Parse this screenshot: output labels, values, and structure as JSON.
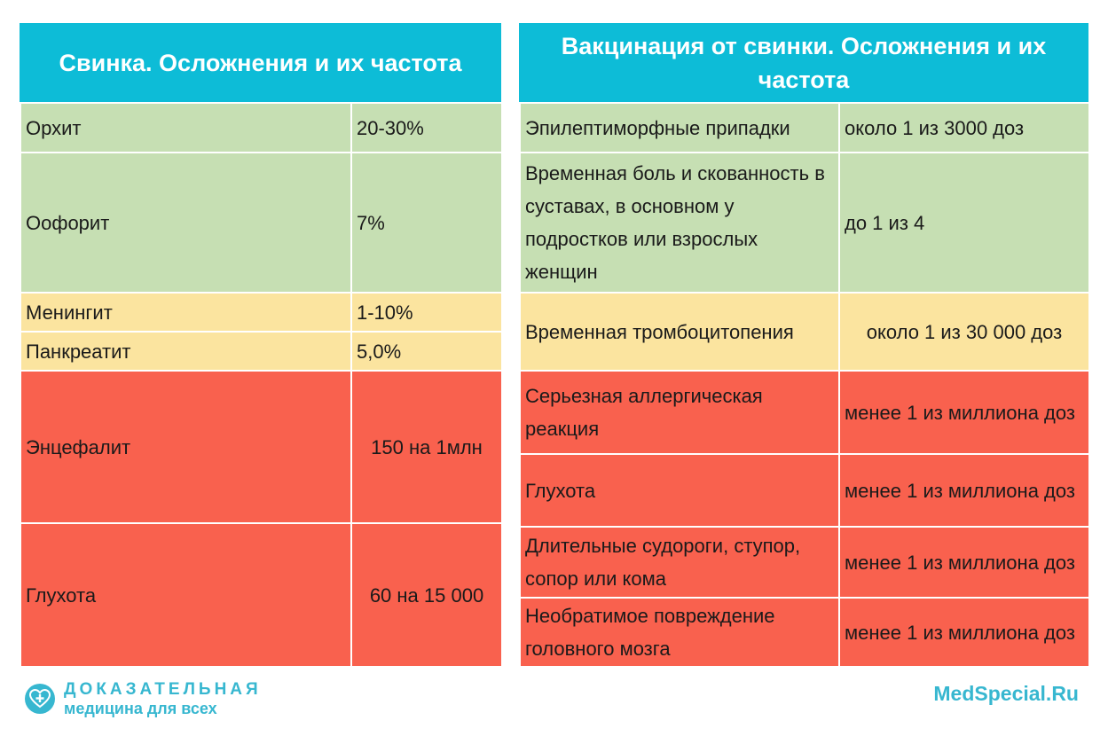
{
  "left": {
    "title": "Свинка. Осложнения и их частота",
    "rows": [
      {
        "name": "Орхит",
        "value": "20-30%"
      },
      {
        "name": "Оофорит",
        "value": "7%"
      },
      {
        "name": "Менингит",
        "value": "1-10%"
      },
      {
        "name": "Панкреатит",
        "value": "5,0%"
      },
      {
        "name": "Энцефалит",
        "value": "150 на 1млн"
      },
      {
        "name": "Глухота",
        "value": "60 на 15 000"
      }
    ]
  },
  "right": {
    "title_line1": "Вакцинация от свинки. Осложнения и их",
    "title_line2": "частота",
    "rows": [
      {
        "name": "Эпилептиморфные припадки",
        "value": "около 1 из 3000 доз"
      },
      {
        "name": "Временная боль и скованность в суставах, в основном у подростков или взрослых женщин",
        "value": "до 1 из 4"
      },
      {
        "name": "Временная тромбоцитопения",
        "value": "около 1 из 30 000 доз"
      },
      {
        "name": "Серьезная аллергическая реакция",
        "value": "менее 1 из миллиона доз"
      },
      {
        "name": "Глухота",
        "value": "менее 1 из миллиона доз"
      },
      {
        "name": "Длительные судороги, ступор, сопор или кома",
        "value": "менее 1 из миллиона доз"
      },
      {
        "name": "Необратимое повреждение головного мозга",
        "value": "менее 1 из миллиона доз"
      }
    ]
  },
  "footer": {
    "logo_line1": "ДОКАЗАТЕЛЬНАЯ",
    "logo_line2": "медицина для всех",
    "logo_icon": "heart-plus-icon",
    "site": "MedSpecial.Ru"
  },
  "colors": {
    "header": "#0dbcd7",
    "low": "#c6dfb3",
    "medium": "#fbe49f",
    "high": "#f9614e",
    "brand": "#37b7d0"
  }
}
